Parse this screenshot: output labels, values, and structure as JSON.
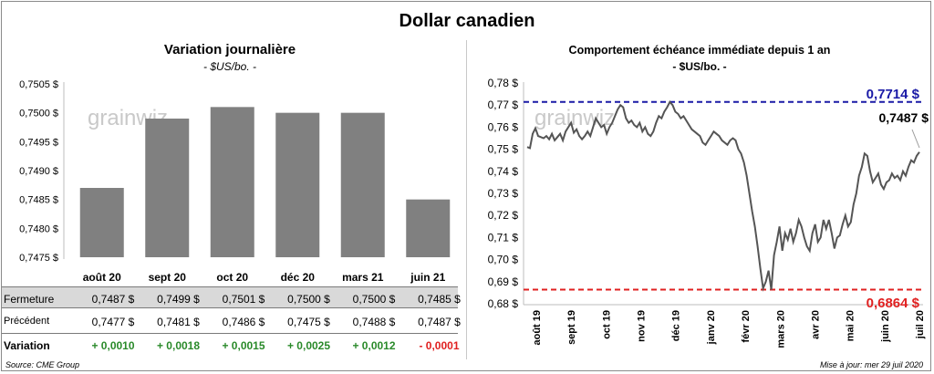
{
  "title": "Dollar canadien",
  "left_chart": {
    "title": "Variation  journalière",
    "subtitle": "- $US/bo. -"
  },
  "right_chart": {
    "title": "Comportement échéance immédiate depuis 1 an",
    "subtitle": "- $US/bo. -"
  },
  "watermark": "grainwiz",
  "table": {
    "row_labels": [
      "Fermeture",
      "Précédent",
      "Variation"
    ],
    "fermeture": [
      "0,7487  $",
      "0,7499  $",
      "0,7501  $",
      "0,7500  $",
      "0,7500  $",
      "0,7485  $"
    ],
    "precedent": [
      "0,7477  $",
      "0,7481  $",
      "0,7486  $",
      "0,7475  $",
      "0,7488  $",
      "0,7487  $"
    ],
    "variation": [
      "+ 0,0010",
      "+ 0,0018",
      "+ 0,0015",
      "+ 0,0025",
      "+ 0,0012",
      "- 0,0001"
    ]
  },
  "source": "Source: CME Group",
  "updated": "Mise à jour: mer 29 juil 2020",
  "colors": {
    "bars": "#808080",
    "line": "#555555",
    "high_line": "#1a1aa6",
    "low_line": "#e02020",
    "positive": "#2a8a2a",
    "negative": "#e02020"
  },
  "chart_data": [
    {
      "type": "bar",
      "categories": [
        "août 20",
        "sept 20",
        "oct 20",
        "déc 20",
        "mars 21",
        "juin 21"
      ],
      "values": [
        0.7487,
        0.7499,
        0.7501,
        0.75,
        0.75,
        0.7485
      ],
      "ylim": [
        0.7475,
        0.7505
      ],
      "yticks": [
        "0,7475 $",
        "0,7480 $",
        "0,7485 $",
        "0,7490 $",
        "0,7495 $",
        "0,7500 $",
        "0,7505 $"
      ],
      "grid": false
    },
    {
      "type": "line",
      "x_labels": [
        "août 19",
        "sept 19",
        "oct 19",
        "nov 19",
        "déc 19",
        "janv 20",
        "févr 20",
        "mars 20",
        "avr 20",
        "mai 20",
        "juin 20",
        "juil 20"
      ],
      "values": [
        0.751,
        0.7505,
        0.757,
        0.7595,
        0.756,
        0.7555,
        0.755,
        0.756,
        0.7545,
        0.757,
        0.754,
        0.7555,
        0.757,
        0.754,
        0.758,
        0.76,
        0.762,
        0.7575,
        0.759,
        0.756,
        0.7545,
        0.756,
        0.758,
        0.756,
        0.76,
        0.764,
        0.762,
        0.76,
        0.761,
        0.757,
        0.76,
        0.762,
        0.765,
        0.768,
        0.77,
        0.769,
        0.764,
        0.762,
        0.763,
        0.761,
        0.76,
        0.762,
        0.758,
        0.76,
        0.757,
        0.756,
        0.758,
        0.762,
        0.765,
        0.764,
        0.767,
        0.769,
        0.7714,
        0.77,
        0.767,
        0.766,
        0.764,
        0.765,
        0.763,
        0.761,
        0.759,
        0.758,
        0.757,
        0.756,
        0.753,
        0.752,
        0.754,
        0.756,
        0.758,
        0.757,
        0.756,
        0.754,
        0.753,
        0.752,
        0.754,
        0.755,
        0.754,
        0.75,
        0.748,
        0.744,
        0.738,
        0.73,
        0.722,
        0.715,
        0.706,
        0.696,
        0.687,
        0.69,
        0.695,
        0.6864,
        0.702,
        0.708,
        0.715,
        0.704,
        0.712,
        0.709,
        0.714,
        0.708,
        0.712,
        0.718,
        0.715,
        0.71,
        0.706,
        0.704,
        0.712,
        0.716,
        0.708,
        0.71,
        0.718,
        0.714,
        0.718,
        0.712,
        0.705,
        0.71,
        0.711,
        0.716,
        0.72,
        0.715,
        0.717,
        0.725,
        0.73,
        0.738,
        0.742,
        0.748,
        0.747,
        0.74,
        0.735,
        0.737,
        0.739,
        0.734,
        0.732,
        0.735,
        0.736,
        0.739,
        0.737,
        0.738,
        0.736,
        0.74,
        0.738,
        0.742,
        0.745,
        0.744,
        0.747,
        0.7487
      ],
      "ylim": [
        0.68,
        0.78
      ],
      "yticks": [
        "0,68 $",
        "0,69 $",
        "0,70 $",
        "0,71 $",
        "0,72 $",
        "0,73 $",
        "0,74 $",
        "0,75 $",
        "0,76 $",
        "0,77 $",
        "0,78 $"
      ],
      "high": 0.7714,
      "high_label": "0,7714  $",
      "low": 0.6864,
      "low_label": "0,6864  $",
      "last_label": "0,7487 $",
      "grid": false
    }
  ]
}
